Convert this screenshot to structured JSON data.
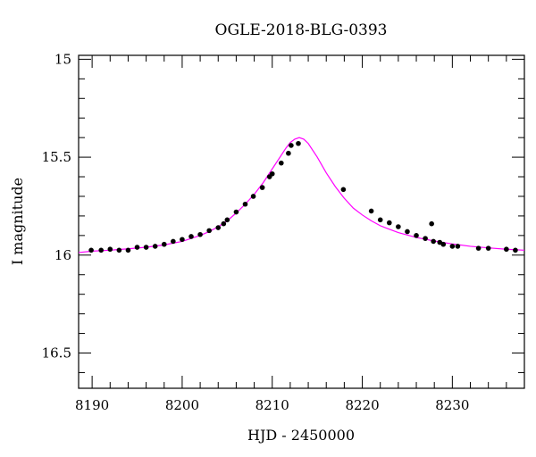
{
  "chart_data": {
    "type": "scatter",
    "title": "OGLE-2018-BLG-0393",
    "xlabel": "HJD - 2450000",
    "ylabel": "I magnitude",
    "xlim": [
      8188.5,
      8238.0
    ],
    "ylim": [
      16.68,
      14.98
    ],
    "y_inverted": true,
    "grid": false,
    "x_ticks": [
      8190,
      8200,
      8210,
      8220,
      8230
    ],
    "x_tick_labels": [
      "8190",
      "8200",
      "8210",
      "8220",
      "8230"
    ],
    "y_ticks": [
      15,
      15.5,
      16,
      16.5
    ],
    "y_tick_labels": [
      "15",
      "15.5",
      "16",
      "16.5"
    ],
    "x_minor_step": 2,
    "y_minor_step": 0.1,
    "series": [
      {
        "kind": "points",
        "color": "#000000",
        "x": [
          8189.9,
          8191.0,
          8192.0,
          8193.0,
          8194.0,
          8195.0,
          8196.0,
          8197.0,
          8198.0,
          8199.0,
          8200.0,
          8201.0,
          8202.0,
          8203.0,
          8204.0,
          8204.6,
          8205.0,
          8206.0,
          8207.0,
          8207.9,
          8208.9,
          8209.7,
          8210.0,
          8211.0,
          8211.8,
          8212.1,
          8212.9,
          8217.9,
          8221.0,
          8222.0,
          8223.0,
          8224.0,
          8225.0,
          8226.0,
          8227.0,
          8227.7,
          8227.9,
          8228.6,
          8229.0,
          8230.0,
          8230.6,
          8232.9,
          8234.0,
          8236.0,
          8237.0
        ],
        "y": [
          15.975,
          15.975,
          15.97,
          15.975,
          15.975,
          15.96,
          15.96,
          15.955,
          15.945,
          15.93,
          15.92,
          15.905,
          15.895,
          15.875,
          15.86,
          15.84,
          15.82,
          15.78,
          15.74,
          15.7,
          15.655,
          15.6,
          15.585,
          15.53,
          15.48,
          15.44,
          15.43,
          15.665,
          15.775,
          15.82,
          15.835,
          15.855,
          15.88,
          15.9,
          15.915,
          15.84,
          15.93,
          15.935,
          15.945,
          15.955,
          15.955,
          15.965,
          15.965,
          15.97,
          15.975
        ]
      },
      {
        "kind": "model",
        "color": "#ff00ff",
        "x": [
          8188.5,
          8190,
          8192,
          8194,
          8196,
          8198,
          8200,
          8202,
          8203,
          8204,
          8205,
          8206,
          8207,
          8208,
          8209,
          8210,
          8211,
          8211.5,
          8212,
          8212.5,
          8213,
          8213.5,
          8214,
          8215,
          8216,
          8217,
          8218,
          8219,
          8220,
          8221,
          8222,
          8223,
          8224,
          8226,
          8228,
          8230,
          8232,
          8234,
          8236,
          8238
        ],
        "y": [
          15.987,
          15.98,
          15.975,
          15.968,
          15.96,
          15.948,
          15.93,
          15.9,
          15.88,
          15.855,
          15.825,
          15.785,
          15.74,
          15.69,
          15.63,
          15.56,
          15.49,
          15.455,
          15.425,
          15.408,
          15.4,
          15.408,
          15.43,
          15.5,
          15.58,
          15.65,
          15.71,
          15.76,
          15.795,
          15.825,
          15.85,
          15.868,
          15.885,
          15.91,
          15.928,
          15.943,
          15.955,
          15.963,
          15.97,
          15.975
        ]
      }
    ]
  }
}
